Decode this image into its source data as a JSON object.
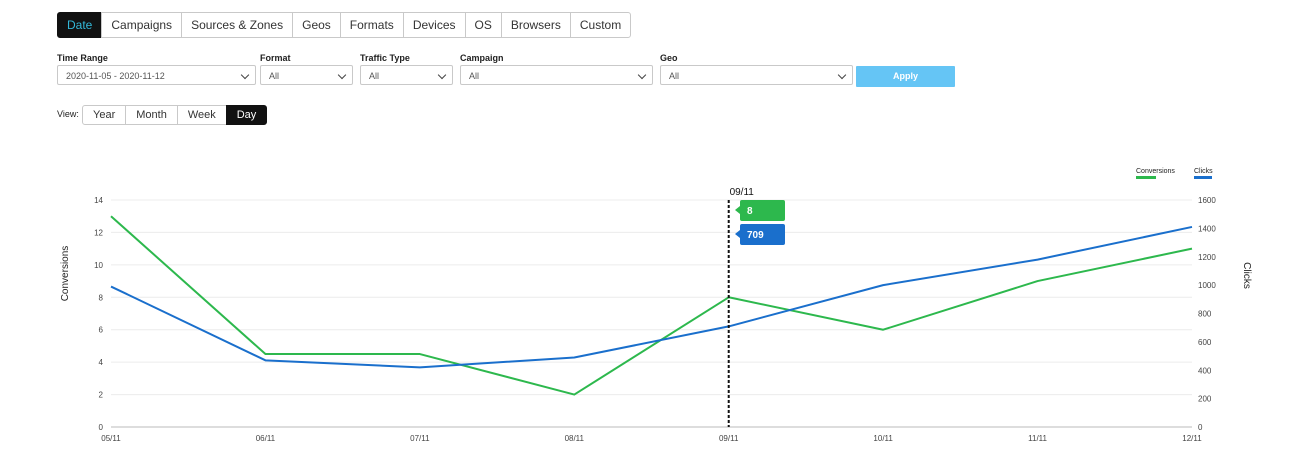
{
  "tabs": [
    "Date",
    "Campaigns",
    "Sources & Zones",
    "Geos",
    "Formats",
    "Devices",
    "OS",
    "Browsers",
    "Custom"
  ],
  "active_tab": "Date",
  "filters": {
    "time_range": {
      "label": "Time Range",
      "value": "2020-11-05 - 2020-11-12"
    },
    "format": {
      "label": "Format",
      "value": "All"
    },
    "traffic_type": {
      "label": "Traffic Type",
      "value": "All"
    },
    "campaign": {
      "label": "Campaign",
      "value": "All"
    },
    "geo": {
      "label": "Geo",
      "value": "All"
    },
    "apply_label": "Apply"
  },
  "view": {
    "label": "View:",
    "options": [
      "Year",
      "Month",
      "Week",
      "Day"
    ],
    "active": "Day"
  },
  "chart_data": {
    "type": "line",
    "categories": [
      "05/11",
      "06/11",
      "07/11",
      "08/11",
      "09/11",
      "10/11",
      "11/11",
      "12/11"
    ],
    "series": [
      {
        "name": "Conversions",
        "axis": "left",
        "color": "#2db84d",
        "values": [
          13,
          4.5,
          4.5,
          2,
          8,
          6,
          9,
          11
        ]
      },
      {
        "name": "Clicks",
        "axis": "right",
        "color": "#1a6fcc",
        "values": [
          990,
          470,
          420,
          490,
          709,
          1000,
          1180,
          1410
        ]
      }
    ],
    "ylabel": "Conversions",
    "y2label": "Clicks",
    "y_ticks": [
      0,
      2,
      4,
      6,
      8,
      10,
      12,
      14
    ],
    "y2_ticks": [
      0,
      200,
      400,
      600,
      800,
      1000,
      1200,
      1400,
      1600
    ],
    "ylim": [
      0,
      14
    ],
    "y2lim": [
      0,
      1600
    ],
    "grid": true,
    "legend_position": "top-right",
    "tooltip": {
      "category": "09/11",
      "conversions": "8",
      "clicks": "709"
    }
  }
}
